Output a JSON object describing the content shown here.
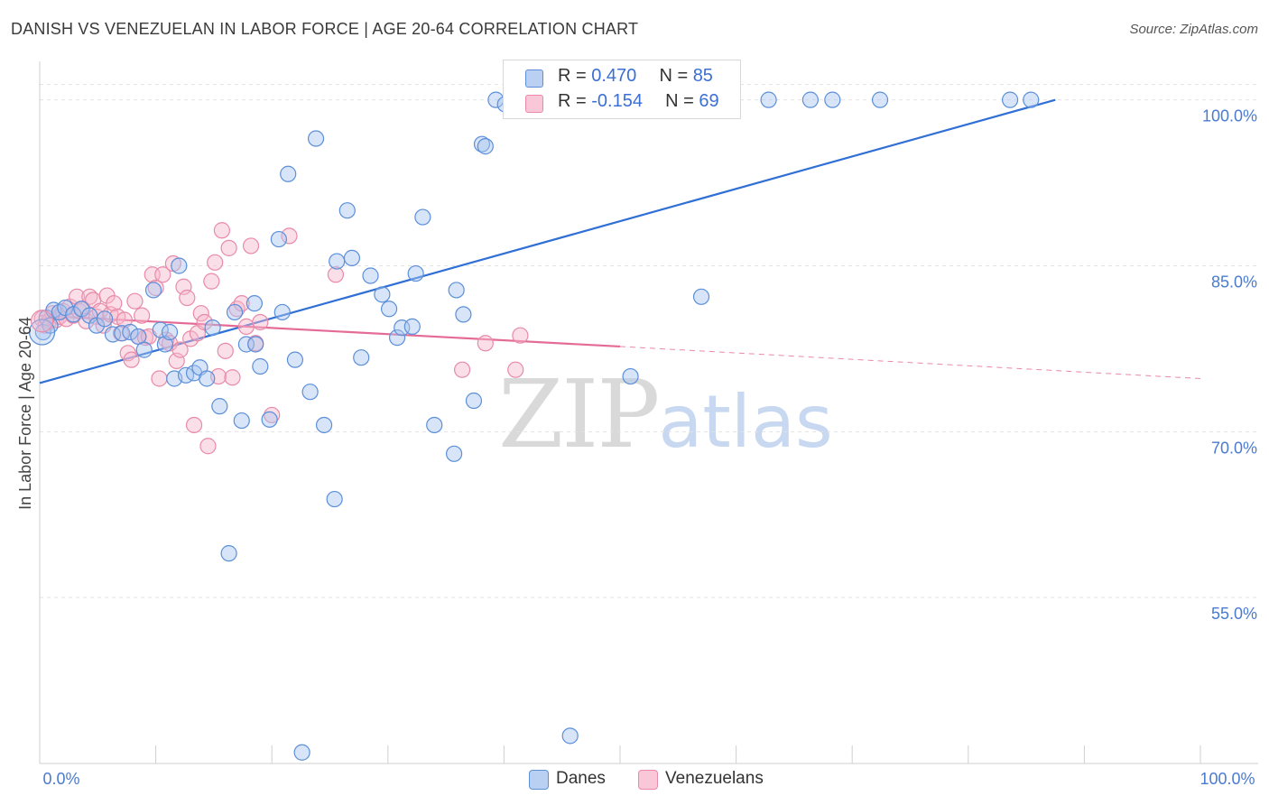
{
  "header": {
    "title": "DANISH VS VENEZUELAN IN LABOR FORCE | AGE 20-64 CORRELATION CHART",
    "source": "Source: ZipAtlas.com"
  },
  "watermark": {
    "zip": "ZIP",
    "atlas": "atlas"
  },
  "legend": {
    "rows": [
      {
        "r_label": "R = ",
        "r_value": "0.470",
        "n_label": "N = ",
        "n_value": "85"
      },
      {
        "r_label": "R = ",
        "r_value": "-0.154",
        "n_label": "N = ",
        "n_value": "69"
      }
    ]
  },
  "bottom_legend": {
    "danes": "Danes",
    "venezuelans": "Venezuelans"
  },
  "colors": {
    "danes_fill": "#a9c6f0",
    "danes_stroke": "#5b8fd9",
    "danes_line": "#2f6fd6",
    "venezuelans_fill": "#f7b8cc",
    "venezuelans_stroke": "#e98aa8",
    "venezuelans_line": "#e56b97",
    "grid": "#e2e2e2",
    "axis": "#cfcfcf",
    "tick_text": "#4a7bd0"
  },
  "chart_data": {
    "type": "scatter",
    "title": "DANISH VS VENEZUELAN IN LABOR FORCE | AGE 20-64 CORRELATION CHART",
    "xlabel": "",
    "ylabel": "In Labor Force | Age 20-64",
    "xlim": [
      0,
      100
    ],
    "ylim": [
      40,
      102.5
    ],
    "x_tick_labels": [
      "0.0%",
      "100.0%"
    ],
    "y_ticks": [
      55,
      70,
      85,
      100
    ],
    "y_tick_labels": [
      "55.0%",
      "70.0%",
      "85.0%",
      "100.0%"
    ],
    "grid": true,
    "legend_position": "top-center",
    "series": [
      {
        "name": "Danes",
        "r": 0.47,
        "n": 85,
        "trend": {
          "x": [
            0,
            87.5
          ],
          "y": [
            74.4,
            100.0
          ]
        },
        "points": [
          [
            0.3,
            79.0
          ],
          [
            0.6,
            80.3
          ],
          [
            0.9,
            79.6
          ],
          [
            1.2,
            81.0
          ],
          [
            1.7,
            80.8
          ],
          [
            2.2,
            81.2
          ],
          [
            2.9,
            80.6
          ],
          [
            3.6,
            81.1
          ],
          [
            4.3,
            80.5
          ],
          [
            4.9,
            79.6
          ],
          [
            5.6,
            80.2
          ],
          [
            6.3,
            78.8
          ],
          [
            7.1,
            78.9
          ],
          [
            7.8,
            79.0
          ],
          [
            8.5,
            78.6
          ],
          [
            9.0,
            77.4
          ],
          [
            9.8,
            82.8
          ],
          [
            10.4,
            79.2
          ],
          [
            10.8,
            77.9
          ],
          [
            11.2,
            79.0
          ],
          [
            11.6,
            74.8
          ],
          [
            12.0,
            85.0
          ],
          [
            12.6,
            75.1
          ],
          [
            13.3,
            75.3
          ],
          [
            13.8,
            75.8
          ],
          [
            14.4,
            74.8
          ],
          [
            14.9,
            79.4
          ],
          [
            15.5,
            72.3
          ],
          [
            16.3,
            59.0
          ],
          [
            16.8,
            80.8
          ],
          [
            17.4,
            71.0
          ],
          [
            17.8,
            77.9
          ],
          [
            18.5,
            81.6
          ],
          [
            18.6,
            77.9
          ],
          [
            19.0,
            75.9
          ],
          [
            19.8,
            71.1
          ],
          [
            20.6,
            87.4
          ],
          [
            20.9,
            80.8
          ],
          [
            21.4,
            93.3
          ],
          [
            22.0,
            76.5
          ],
          [
            22.6,
            41.0
          ],
          [
            23.3,
            73.6
          ],
          [
            23.8,
            96.5
          ],
          [
            24.5,
            70.6
          ],
          [
            25.4,
            63.9
          ],
          [
            25.6,
            85.4
          ],
          [
            26.5,
            90.0
          ],
          [
            26.9,
            85.7
          ],
          [
            27.7,
            76.7
          ],
          [
            28.5,
            84.1
          ],
          [
            29.5,
            82.4
          ],
          [
            30.1,
            81.1
          ],
          [
            30.8,
            78.5
          ],
          [
            31.2,
            79.4
          ],
          [
            32.1,
            79.5
          ],
          [
            32.4,
            84.3
          ],
          [
            33.0,
            89.4
          ],
          [
            34.0,
            70.6
          ],
          [
            35.7,
            68.0
          ],
          [
            35.9,
            82.8
          ],
          [
            36.5,
            80.6
          ],
          [
            37.4,
            72.8
          ],
          [
            38.1,
            96.0
          ],
          [
            38.4,
            95.8
          ],
          [
            39.3,
            100.0
          ],
          [
            40.1,
            99.6
          ],
          [
            41.8,
            100.0
          ],
          [
            43.7,
            100.0
          ],
          [
            45.2,
            100.0
          ],
          [
            45.7,
            42.5
          ],
          [
            47.0,
            100.0
          ],
          [
            48.3,
            100.0
          ],
          [
            49.1,
            100.0
          ],
          [
            49.9,
            100.0
          ],
          [
            51.3,
            100.0
          ],
          [
            50.9,
            75.0
          ],
          [
            53.2,
            100.0
          ],
          [
            54.9,
            100.0
          ],
          [
            57.0,
            82.2
          ],
          [
            62.8,
            100.0
          ],
          [
            66.4,
            100.0
          ],
          [
            68.3,
            100.0
          ],
          [
            72.4,
            100.0
          ],
          [
            83.6,
            100.0
          ],
          [
            85.4,
            100.0
          ]
        ]
      },
      {
        "name": "Venezuelans",
        "r": -0.154,
        "n": 69,
        "trend": {
          "x": [
            0,
            50.0
          ],
          "y": [
            80.5,
            77.7
          ]
        },
        "trend_extension": {
          "x": [
            50.0,
            100
          ],
          "y": [
            77.7,
            74.8
          ]
        },
        "points": [
          [
            0.2,
            80.2
          ],
          [
            0.5,
            79.6
          ],
          [
            0.8,
            80.0
          ],
          [
            1.1,
            80.7
          ],
          [
            1.4,
            80.1
          ],
          [
            1.7,
            80.4
          ],
          [
            2.0,
            80.9
          ],
          [
            2.3,
            80.2
          ],
          [
            2.6,
            81.3
          ],
          [
            2.9,
            80.5
          ],
          [
            3.2,
            82.2
          ],
          [
            3.4,
            80.9
          ],
          [
            3.7,
            81.1
          ],
          [
            4.0,
            80.0
          ],
          [
            4.3,
            82.2
          ],
          [
            4.6,
            81.9
          ],
          [
            4.9,
            80.4
          ],
          [
            5.2,
            80.9
          ],
          [
            5.5,
            79.6
          ],
          [
            5.8,
            82.3
          ],
          [
            6.1,
            80.6
          ],
          [
            6.4,
            81.6
          ],
          [
            6.7,
            80.4
          ],
          [
            7.0,
            78.9
          ],
          [
            7.3,
            80.1
          ],
          [
            7.6,
            77.1
          ],
          [
            7.9,
            76.5
          ],
          [
            8.2,
            81.8
          ],
          [
            8.5,
            78.6
          ],
          [
            8.8,
            80.5
          ],
          [
            9.1,
            78.5
          ],
          [
            9.4,
            78.6
          ],
          [
            9.7,
            84.2
          ],
          [
            10.0,
            83.0
          ],
          [
            10.3,
            74.8
          ],
          [
            10.6,
            84.2
          ],
          [
            10.9,
            78.3
          ],
          [
            11.2,
            78.0
          ],
          [
            11.5,
            85.2
          ],
          [
            11.8,
            76.4
          ],
          [
            12.1,
            77.4
          ],
          [
            12.4,
            83.1
          ],
          [
            12.7,
            82.1
          ],
          [
            13.0,
            78.4
          ],
          [
            13.3,
            70.6
          ],
          [
            13.6,
            78.9
          ],
          [
            13.9,
            80.7
          ],
          [
            14.2,
            79.9
          ],
          [
            14.5,
            68.7
          ],
          [
            14.8,
            83.6
          ],
          [
            15.1,
            85.3
          ],
          [
            15.4,
            75.0
          ],
          [
            15.7,
            88.2
          ],
          [
            16.0,
            77.3
          ],
          [
            16.3,
            86.6
          ],
          [
            16.6,
            74.9
          ],
          [
            17.0,
            81.1
          ],
          [
            17.4,
            81.6
          ],
          [
            17.8,
            79.5
          ],
          [
            18.2,
            86.8
          ],
          [
            18.6,
            78.0
          ],
          [
            19.0,
            79.9
          ],
          [
            20.0,
            71.5
          ],
          [
            21.5,
            87.7
          ],
          [
            25.5,
            84.2
          ],
          [
            36.4,
            75.6
          ],
          [
            38.4,
            78.0
          ],
          [
            41.0,
            75.6
          ],
          [
            41.4,
            78.7
          ]
        ]
      }
    ]
  }
}
